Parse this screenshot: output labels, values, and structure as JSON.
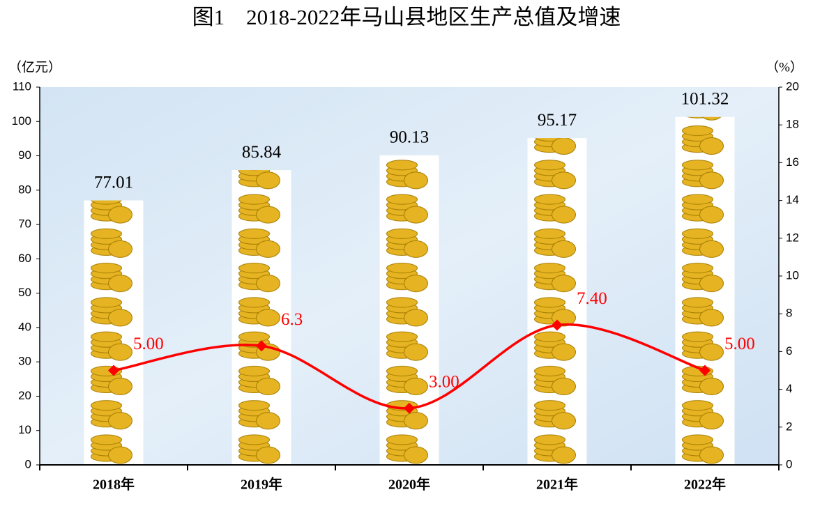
{
  "chart_data": {
    "type": "bar",
    "title": "图1　2018-2022年马山县地区生产总值及增速",
    "y_label": "（亿元）",
    "y2_label": "（%）",
    "categories": [
      "2018年",
      "2019年",
      "2020年",
      "2021年",
      "2022年"
    ],
    "series": [
      {
        "name": "地区生产总值",
        "type": "bar",
        "color": "#e6b422",
        "values": [
          77.01,
          85.84,
          90.13,
          95.17,
          101.32
        ]
      },
      {
        "name": "增速",
        "type": "line",
        "axis": "y2",
        "color": "#ff0000",
        "values": [
          5.0,
          6.3,
          3.0,
          7.4,
          5.0
        ],
        "value_labels": [
          "5.00",
          "6.3",
          "3.00",
          "7.40",
          "5.00"
        ]
      }
    ],
    "ylim": [
      0,
      110
    ],
    "yticks": [
      0,
      10,
      20,
      30,
      40,
      50,
      60,
      70,
      80,
      90,
      100,
      110
    ],
    "y2lim": [
      0,
      20
    ],
    "y2ticks": [
      0,
      2,
      4,
      6,
      8,
      10,
      12,
      14,
      16,
      18,
      20
    ]
  }
}
